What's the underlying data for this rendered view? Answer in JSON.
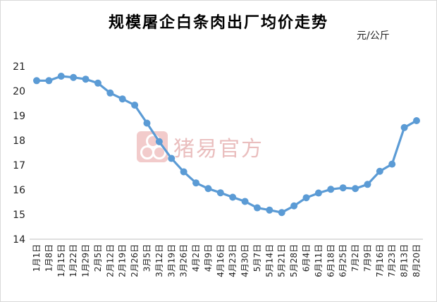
{
  "chart_data": {
    "type": "line",
    "title": "规模屠企白条肉出厂均价走势",
    "unit_label": "元/公斤",
    "watermark": "猪易官方",
    "xlabel": "",
    "ylabel": "",
    "ylim": [
      14,
      21
    ],
    "yticks": [
      14,
      15,
      16,
      17,
      18,
      19,
      20,
      21
    ],
    "grid": false,
    "line_color": "#5b9bd5",
    "categories": [
      "1月1日",
      "1月8日",
      "1月15日",
      "1月22日",
      "1月29日",
      "2月5日",
      "2月12日",
      "2月19日",
      "2月26日",
      "3月5日",
      "3月12日",
      "3月19日",
      "3月26日",
      "4月2日",
      "4月9日",
      "4月16日",
      "4月23日",
      "4月30日",
      "5月7日",
      "5月14日",
      "5月21日",
      "5月28日",
      "6月4日",
      "6月11日",
      "6月18日",
      "6月25日",
      "7月2日",
      "7月9日",
      "7月16日",
      "7月23日",
      "8月13日",
      "8月20日"
    ],
    "values": [
      20.42,
      20.42,
      20.6,
      20.55,
      20.48,
      20.32,
      19.92,
      19.68,
      19.43,
      18.7,
      17.95,
      17.27,
      16.73,
      16.28,
      16.05,
      15.88,
      15.7,
      15.53,
      15.27,
      15.18,
      15.08,
      15.35,
      15.68,
      15.87,
      16.02,
      16.08,
      16.05,
      16.22,
      16.75,
      17.04,
      18.52,
      18.8
    ]
  }
}
